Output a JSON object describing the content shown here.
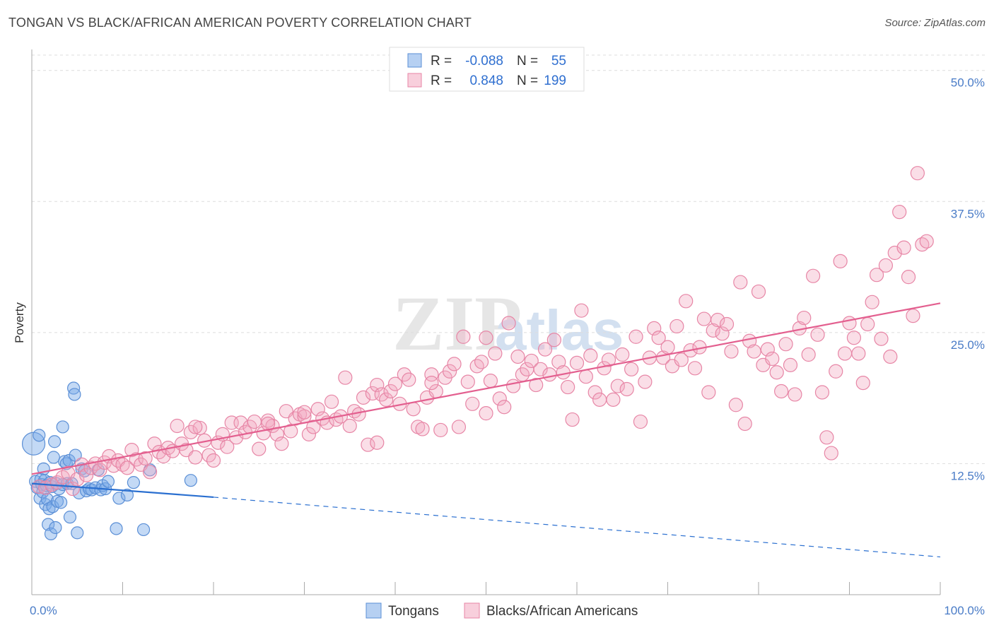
{
  "title": "TONGAN VS BLACK/AFRICAN AMERICAN POVERTY CORRELATION CHART",
  "source": "Source: ZipAtlas.com",
  "watermark": {
    "zip": "ZIP",
    "atlas": "atlas"
  },
  "chart_data": {
    "type": "scatter",
    "xlabel": "",
    "ylabel": "Poverty",
    "xlim": [
      0,
      100
    ],
    "ylim": [
      0,
      52
    ],
    "x_tick_labels": [
      {
        "value": 0,
        "label": "0.0%"
      },
      {
        "value": 100,
        "label": "100.0%"
      }
    ],
    "y_tick_labels": [
      {
        "value": 12.5,
        "label": "12.5%"
      },
      {
        "value": 25,
        "label": "25.0%"
      },
      {
        "value": 37.5,
        "label": "37.5%"
      },
      {
        "value": 50,
        "label": "50.0%"
      }
    ],
    "grid": "horizontal-dashed",
    "legend_placement": "bottom-center",
    "stats_box_placement": "top-center",
    "series": [
      {
        "name": "Tongans",
        "color": "#7aaae8",
        "stroke": "#5b8fd6",
        "line_color": "#2a6fd0",
        "stats": {
          "r_label": "R =",
          "r": "-0.088",
          "n_label": "N =",
          "n": "55"
        },
        "trend": {
          "x0": 0,
          "y0": 10.6,
          "x1": 20,
          "y1": 9.3,
          "dashed_to_x": 100,
          "dashed_to_y": 3.6
        },
        "points": [
          [
            0.2,
            14.4,
            3
          ],
          [
            0.4,
            10.8,
            2
          ],
          [
            0.6,
            10.2,
            1
          ],
          [
            0.8,
            15.2,
            1
          ],
          [
            0.9,
            9.2,
            1
          ],
          [
            1.0,
            11.0,
            1
          ],
          [
            1.1,
            10.5,
            1
          ],
          [
            1.2,
            9.8,
            1
          ],
          [
            1.3,
            12.0,
            1
          ],
          [
            1.4,
            10.9,
            1
          ],
          [
            1.5,
            8.6,
            1
          ],
          [
            1.6,
            10.4,
            1
          ],
          [
            1.7,
            9.1,
            1
          ],
          [
            1.8,
            6.7,
            1
          ],
          [
            1.9,
            8.2,
            1
          ],
          [
            2.0,
            10.7,
            1
          ],
          [
            2.1,
            5.8,
            1
          ],
          [
            2.2,
            10.3,
            1
          ],
          [
            2.3,
            8.4,
            1
          ],
          [
            2.4,
            13.1,
            1
          ],
          [
            2.5,
            14.6,
            1
          ],
          [
            2.6,
            6.4,
            1
          ],
          [
            2.7,
            10.6,
            1
          ],
          [
            2.8,
            8.9,
            1
          ],
          [
            3.0,
            10.1,
            1
          ],
          [
            3.2,
            8.8,
            1
          ],
          [
            3.4,
            10.5,
            1
          ],
          [
            3.6,
            12.7,
            1
          ],
          [
            3.8,
            12.5,
            1
          ],
          [
            3.9,
            10.6,
            1
          ],
          [
            4.1,
            12.8,
            1
          ],
          [
            4.2,
            7.4,
            1
          ],
          [
            4.4,
            10.6,
            1
          ],
          [
            4.6,
            19.7,
            1
          ],
          [
            4.7,
            19.1,
            1
          ],
          [
            4.8,
            13.3,
            1
          ],
          [
            5.0,
            5.9,
            1
          ],
          [
            5.2,
            9.7,
            1
          ],
          [
            5.5,
            12.0,
            1
          ],
          [
            5.8,
            11.8,
            1
          ],
          [
            6.0,
            9.9,
            1
          ],
          [
            6.3,
            10.1,
            1
          ],
          [
            6.6,
            10.0,
            1
          ],
          [
            7.0,
            10.2,
            1
          ],
          [
            7.3,
            11.9,
            1
          ],
          [
            7.6,
            10.0,
            1
          ],
          [
            7.8,
            10.4,
            1
          ],
          [
            8.1,
            10.1,
            1
          ],
          [
            8.4,
            10.8,
            1
          ],
          [
            9.3,
            6.3,
            1
          ],
          [
            9.6,
            9.2,
            1
          ],
          [
            10.5,
            9.5,
            1
          ],
          [
            11.2,
            10.7,
            1
          ],
          [
            12.3,
            6.2,
            1
          ],
          [
            17.5,
            10.9,
            1
          ],
          [
            13.0,
            11.9,
            1
          ],
          [
            3.4,
            16.0,
            1
          ]
        ]
      },
      {
        "name": "Blacks/African Americans",
        "color": "#f3a7c0",
        "stroke": "#e786a6",
        "line_color": "#e35f8f",
        "stats": {
          "r_label": "R =",
          "r": "0.848",
          "n_label": "N =",
          "n": "199"
        },
        "trend": {
          "x0": 0,
          "y0": 11.5,
          "x1": 100,
          "y1": 27.8
        },
        "points": [
          [
            0.8,
            10.3
          ],
          [
            1.5,
            10.2
          ],
          [
            2.2,
            10.5
          ],
          [
            2.8,
            10.7
          ],
          [
            3.4,
            11.2
          ],
          [
            4.0,
            11.6
          ],
          [
            4.5,
            10.1
          ],
          [
            5.0,
            11.0
          ],
          [
            5.5,
            12.4
          ],
          [
            6.0,
            11.4
          ],
          [
            6.5,
            12.1
          ],
          [
            7.0,
            12.5
          ],
          [
            7.5,
            11.9
          ],
          [
            8.0,
            12.6
          ],
          [
            8.5,
            13.2
          ],
          [
            9.0,
            12.3
          ],
          [
            9.5,
            12.8
          ],
          [
            10.0,
            12.4
          ],
          [
            10.5,
            12.1
          ],
          [
            11.0,
            13.8
          ],
          [
            11.5,
            12.9
          ],
          [
            12.0,
            12.4
          ],
          [
            12.5,
            13.0
          ],
          [
            13.0,
            11.7
          ],
          [
            13.5,
            14.4
          ],
          [
            14.0,
            13.6
          ],
          [
            14.5,
            13.2
          ],
          [
            15.0,
            14.0
          ],
          [
            15.5,
            13.7
          ],
          [
            16.0,
            16.1
          ],
          [
            16.5,
            14.4
          ],
          [
            17.0,
            13.8
          ],
          [
            17.5,
            15.5
          ],
          [
            18.0,
            13.1
          ],
          [
            18.5,
            15.9
          ],
          [
            19.0,
            14.7
          ],
          [
            19.5,
            13.3
          ],
          [
            20.0,
            12.8
          ],
          [
            20.5,
            14.5
          ],
          [
            21.0,
            15.3
          ],
          [
            21.5,
            14.1
          ],
          [
            22.0,
            16.4
          ],
          [
            22.5,
            15.0
          ],
          [
            23.0,
            16.4
          ],
          [
            23.5,
            15.5
          ],
          [
            24.0,
            16.0
          ],
          [
            24.5,
            16.5
          ],
          [
            25.0,
            13.9
          ],
          [
            25.5,
            15.4
          ],
          [
            26.0,
            16.6
          ],
          [
            26.5,
            16.1
          ],
          [
            27.0,
            15.3
          ],
          [
            27.5,
            14.4
          ],
          [
            28.0,
            17.5
          ],
          [
            28.5,
            15.6
          ],
          [
            29.0,
            16.8
          ],
          [
            29.5,
            17.2
          ],
          [
            30.0,
            17.0
          ],
          [
            30.5,
            15.3
          ],
          [
            31.0,
            16.0
          ],
          [
            31.5,
            17.7
          ],
          [
            32.0,
            16.8
          ],
          [
            32.5,
            16.4
          ],
          [
            33.0,
            18.4
          ],
          [
            33.5,
            16.7
          ],
          [
            34.0,
            17.0
          ],
          [
            34.5,
            20.7
          ],
          [
            35.0,
            16.1
          ],
          [
            35.5,
            17.5
          ],
          [
            36.0,
            17.2
          ],
          [
            36.5,
            18.8
          ],
          [
            37.0,
            14.3
          ],
          [
            37.5,
            19.2
          ],
          [
            38.0,
            20.0
          ],
          [
            38.5,
            19.1
          ],
          [
            39.0,
            18.6
          ],
          [
            39.5,
            19.4
          ],
          [
            40.0,
            20.1
          ],
          [
            40.5,
            18.2
          ],
          [
            41.0,
            21.0
          ],
          [
            41.5,
            20.5
          ],
          [
            42.0,
            17.7
          ],
          [
            42.5,
            16.0
          ],
          [
            43.0,
            15.8
          ],
          [
            43.5,
            18.8
          ],
          [
            44.0,
            21.0
          ],
          [
            44.5,
            19.4
          ],
          [
            45.0,
            15.7
          ],
          [
            45.5,
            20.7
          ],
          [
            46.0,
            21.3
          ],
          [
            46.5,
            22.0
          ],
          [
            47.0,
            16.0
          ],
          [
            47.5,
            24.6
          ],
          [
            48.0,
            20.3
          ],
          [
            48.5,
            18.2
          ],
          [
            49.0,
            21.8
          ],
          [
            49.5,
            22.2
          ],
          [
            50.0,
            17.3
          ],
          [
            50.5,
            20.4
          ],
          [
            51.0,
            23.0
          ],
          [
            51.5,
            18.7
          ],
          [
            52.0,
            17.9
          ],
          [
            52.5,
            25.9
          ],
          [
            53.0,
            19.9
          ],
          [
            53.5,
            22.7
          ],
          [
            54.0,
            21.0
          ],
          [
            54.5,
            21.5
          ],
          [
            55.0,
            22.3
          ],
          [
            55.5,
            20.0
          ],
          [
            56.0,
            21.5
          ],
          [
            56.5,
            23.4
          ],
          [
            57.0,
            21.0
          ],
          [
            57.5,
            24.3
          ],
          [
            58.0,
            22.2
          ],
          [
            58.5,
            21.2
          ],
          [
            59.0,
            19.8
          ],
          [
            59.5,
            16.7
          ],
          [
            60.0,
            22.1
          ],
          [
            60.5,
            27.1
          ],
          [
            61.0,
            20.8
          ],
          [
            61.5,
            22.8
          ],
          [
            62.0,
            19.3
          ],
          [
            62.5,
            18.6
          ],
          [
            63.0,
            21.6
          ],
          [
            63.5,
            22.4
          ],
          [
            64.0,
            18.6
          ],
          [
            64.5,
            19.9
          ],
          [
            65.0,
            22.9
          ],
          [
            65.5,
            19.6
          ],
          [
            66.0,
            21.5
          ],
          [
            66.5,
            24.6
          ],
          [
            67.0,
            16.5
          ],
          [
            67.5,
            20.3
          ],
          [
            68.0,
            22.6
          ],
          [
            68.5,
            25.4
          ],
          [
            69.0,
            24.5
          ],
          [
            69.5,
            22.6
          ],
          [
            70.0,
            23.6
          ],
          [
            70.5,
            21.8
          ],
          [
            71.0,
            25.6
          ],
          [
            71.5,
            22.4
          ],
          [
            72.0,
            28.0
          ],
          [
            72.5,
            23.3
          ],
          [
            73.0,
            21.6
          ],
          [
            73.5,
            23.6
          ],
          [
            74.0,
            26.3
          ],
          [
            74.5,
            19.3
          ],
          [
            75.0,
            25.2
          ],
          [
            75.5,
            26.2
          ],
          [
            76.0,
            24.9
          ],
          [
            76.5,
            25.8
          ],
          [
            77.0,
            23.2
          ],
          [
            77.5,
            18.1
          ],
          [
            78.0,
            29.8
          ],
          [
            78.5,
            16.3
          ],
          [
            79.0,
            24.2
          ],
          [
            79.5,
            23.2
          ],
          [
            80.0,
            28.9
          ],
          [
            80.5,
            21.9
          ],
          [
            81.0,
            23.4
          ],
          [
            81.5,
            22.5
          ],
          [
            82.0,
            21.2
          ],
          [
            82.5,
            19.4
          ],
          [
            83.0,
            23.9
          ],
          [
            83.5,
            21.9
          ],
          [
            84.0,
            19.1
          ],
          [
            84.5,
            25.4
          ],
          [
            85.0,
            26.4
          ],
          [
            85.5,
            22.9
          ],
          [
            86.0,
            30.4
          ],
          [
            86.5,
            24.8
          ],
          [
            87.0,
            19.3
          ],
          [
            87.5,
            15.0
          ],
          [
            88.0,
            13.5
          ],
          [
            88.5,
            21.3
          ],
          [
            89.0,
            31.8
          ],
          [
            89.5,
            23.0
          ],
          [
            90.0,
            25.9
          ],
          [
            90.5,
            24.5
          ],
          [
            91.0,
            23.0
          ],
          [
            91.5,
            20.2
          ],
          [
            92.0,
            25.8
          ],
          [
            92.5,
            27.9
          ],
          [
            93.0,
            30.5
          ],
          [
            93.5,
            24.4
          ],
          [
            94.0,
            31.4
          ],
          [
            94.5,
            22.7
          ],
          [
            95.0,
            32.6
          ],
          [
            95.5,
            36.5
          ],
          [
            96.0,
            33.1
          ],
          [
            96.5,
            30.3
          ],
          [
            97.0,
            26.6
          ],
          [
            97.5,
            40.2
          ],
          [
            98.0,
            33.4
          ],
          [
            98.5,
            33.7
          ],
          [
            18.0,
            16.0
          ],
          [
            26.0,
            16.3
          ],
          [
            30.0,
            17.4
          ],
          [
            38.0,
            14.5
          ],
          [
            44.0,
            20.2
          ],
          [
            50.0,
            24.5
          ]
        ]
      }
    ]
  }
}
